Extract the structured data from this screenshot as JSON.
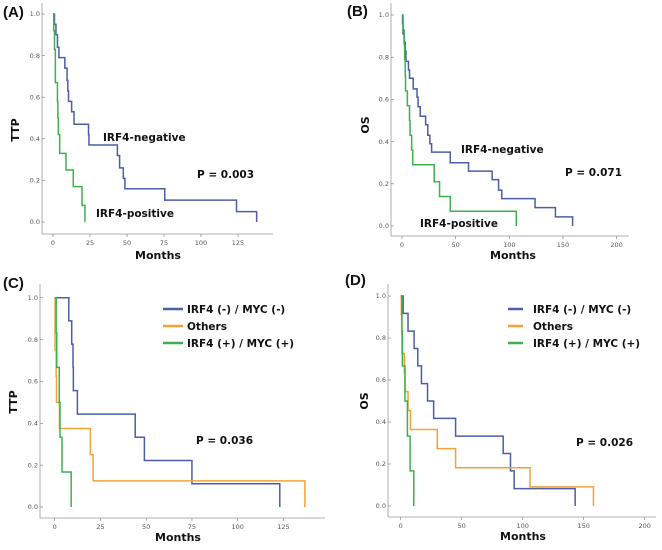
{
  "chart_data": [
    {
      "type": "line",
      "panel_label": "(A)",
      "xlabel": "Months",
      "ylabel": "TTP",
      "xlim": [
        0,
        137.6
      ],
      "ylim": [
        0,
        1
      ],
      "xticks": [
        0,
        25,
        50,
        75,
        100,
        125
      ],
      "yticks": [
        "0.0",
        "0.2",
        "0.4",
        "0.6",
        "0.8",
        "1.0"
      ],
      "grid": false,
      "step": true,
      "p_value": "P = 0.003",
      "series": [
        {
          "name": "IRF4-negative",
          "color": "#4b5ea6",
          "points": [
            [
              0,
              1
            ],
            [
              1,
              0.95
            ],
            [
              2,
              0.9
            ],
            [
              3,
              0.84
            ],
            [
              4,
              0.79
            ],
            [
              8,
              0.74
            ],
            [
              9.5,
              0.68
            ],
            [
              10,
              0.63
            ],
            [
              10.5,
              0.58
            ],
            [
              12.6,
              0.53
            ],
            [
              14.2,
              0.47
            ],
            [
              24,
              0.42
            ],
            [
              24.3,
              0.37
            ],
            [
              43.5,
              0.32
            ],
            [
              45,
              0.26
            ],
            [
              47.5,
              0.21
            ],
            [
              48.6,
              0.16
            ],
            [
              75.5,
              0.105
            ],
            [
              124,
              0.05
            ],
            [
              137.6,
              0
            ]
          ]
        },
        {
          "name": "IRF4-positive",
          "color": "#3bb24c",
          "points": [
            [
              0,
              1
            ],
            [
              0.5,
              0.92
            ],
            [
              1,
              0.83
            ],
            [
              1.6,
              0.67
            ],
            [
              3,
              0.58
            ],
            [
              3.3,
              0.5
            ],
            [
              3.6,
              0.42
            ],
            [
              4.5,
              0.33
            ],
            [
              8.8,
              0.25
            ],
            [
              13.7,
              0.17
            ],
            [
              19.6,
              0.08
            ],
            [
              21.6,
              0
            ]
          ]
        }
      ]
    },
    {
      "type": "line",
      "panel_label": "(B)",
      "xlabel": "Months",
      "ylabel": "OS",
      "xlim": [
        0,
        200
      ],
      "ylim": [
        0,
        1
      ],
      "xticks": [
        0,
        50,
        100,
        150,
        200
      ],
      "yticks": [
        "0.0",
        "0.2",
        "0.4",
        "0.6",
        "0.8",
        "1.0"
      ],
      "grid": false,
      "step": true,
      "p_value": "P = 0.071",
      "series": [
        {
          "name": "IRF4-negative",
          "color": "#4b5ea6",
          "points": [
            [
              0,
              1
            ],
            [
              0.5,
              0.96
            ],
            [
              1,
              0.91
            ],
            [
              2,
              0.87
            ],
            [
              3,
              0.83
            ],
            [
              3.7,
              0.78
            ],
            [
              6,
              0.74
            ],
            [
              7,
              0.7
            ],
            [
              10.5,
              0.65
            ],
            [
              14,
              0.61
            ],
            [
              15,
              0.565
            ],
            [
              17,
              0.52
            ],
            [
              22,
              0.48
            ],
            [
              24,
              0.43
            ],
            [
              26,
              0.39
            ],
            [
              27.6,
              0.35
            ],
            [
              45,
              0.3
            ],
            [
              62,
              0.26
            ],
            [
              84,
              0.22
            ],
            [
              90,
              0.17
            ],
            [
              93,
              0.13
            ],
            [
              124,
              0.087
            ],
            [
              143,
              0.043
            ],
            [
              159,
              0
            ]
          ]
        },
        {
          "name": "IRF4-positive",
          "color": "#3bb24c",
          "points": [
            [
              0,
              1
            ],
            [
              1,
              0.93
            ],
            [
              2,
              0.86
            ],
            [
              2.5,
              0.79
            ],
            [
              3,
              0.71
            ],
            [
              3.3,
              0.64
            ],
            [
              5,
              0.57
            ],
            [
              7,
              0.5
            ],
            [
              7.5,
              0.43
            ],
            [
              9,
              0.36
            ],
            [
              10,
              0.29
            ],
            [
              30,
              0.21
            ],
            [
              35,
              0.14
            ],
            [
              45,
              0.07
            ],
            [
              106.5,
              0
            ]
          ]
        }
      ]
    },
    {
      "type": "line",
      "panel_label": "(C)",
      "xlabel": "Months",
      "ylabel": "TTP",
      "xlim": [
        0,
        137
      ],
      "ylim": [
        0,
        1
      ],
      "xticks": [
        0,
        25,
        50,
        75,
        100,
        125
      ],
      "yticks": [
        "0.0",
        "0.2",
        "0.4",
        "0.6",
        "0.8",
        "1.0"
      ],
      "grid": false,
      "step": true,
      "legend_position": "top-right",
      "p_value": "P = 0.036",
      "series": [
        {
          "name": "IRF4 (-) / MYC (-)",
          "color": "#4b5ea6",
          "points": [
            [
              0,
              1
            ],
            [
              7.7,
              0.889
            ],
            [
              9.3,
              0.778
            ],
            [
              10,
              0.667
            ],
            [
              10.2,
              0.556
            ],
            [
              12.4,
              0.444
            ],
            [
              44,
              0.333
            ],
            [
              49,
              0.222
            ],
            [
              75,
              0.111
            ],
            [
              123,
              0
            ]
          ]
        },
        {
          "name": "Others",
          "color": "#f2a23a",
          "points": [
            [
              0,
              1
            ],
            [
              0.2,
              0.75
            ],
            [
              0.8,
              0.625
            ],
            [
              1,
              0.5
            ],
            [
              2.6,
              0.375
            ],
            [
              19.5,
              0.25
            ],
            [
              21,
              0.125
            ],
            [
              136.7,
              0
            ]
          ]
        },
        {
          "name": "IRF4 (+) / MYC (+)",
          "color": "#3bb24c",
          "points": [
            [
              0,
              1
            ],
            [
              0.8,
              0.833
            ],
            [
              1.1,
              0.667
            ],
            [
              2.5,
              0.5
            ],
            [
              2.9,
              0.333
            ],
            [
              4,
              0.167
            ],
            [
              9,
              0
            ]
          ]
        }
      ]
    },
    {
      "type": "line",
      "panel_label": "(D)",
      "xlabel": "Months",
      "ylabel": "OS",
      "xlim": [
        0,
        200
      ],
      "ylim": [
        0,
        1
      ],
      "xticks": [
        0,
        50,
        100,
        150,
        200
      ],
      "yticks": [
        "0.0",
        "0.2",
        "0.4",
        "0.6",
        "0.8",
        "1.0"
      ],
      "grid": false,
      "step": true,
      "legend_position": "top-right",
      "p_value": "P = 0.026",
      "series": [
        {
          "name": "IRF4 (-) / MYC (-)",
          "color": "#4b5ea6",
          "points": [
            [
              0,
              1
            ],
            [
              2,
              0.917
            ],
            [
              6,
              0.833
            ],
            [
              11,
              0.75
            ],
            [
              14,
              0.667
            ],
            [
              17,
              0.583
            ],
            [
              22,
              0.5
            ],
            [
              27,
              0.417
            ],
            [
              45,
              0.333
            ],
            [
              84,
              0.25
            ],
            [
              90,
              0.167
            ],
            [
              93,
              0.083
            ],
            [
              143,
              0
            ]
          ]
        },
        {
          "name": "Others",
          "color": "#f2a23a",
          "points": [
            [
              0,
              1
            ],
            [
              0.5,
              0.909
            ],
            [
              0.8,
              0.818
            ],
            [
              1,
              0.727
            ],
            [
              3,
              0.636
            ],
            [
              3.5,
              0.545
            ],
            [
              6,
              0.455
            ],
            [
              8,
              0.364
            ],
            [
              30,
              0.273
            ],
            [
              45,
              0.182
            ],
            [
              106,
              0.091
            ],
            [
              158,
              0
            ]
          ]
        },
        {
          "name": "IRF4 (+) / MYC (+)",
          "color": "#3bb24c",
          "points": [
            [
              0,
              1
            ],
            [
              1,
              0.833
            ],
            [
              1.4,
              0.667
            ],
            [
              3.5,
              0.5
            ],
            [
              5.5,
              0.333
            ],
            [
              7.7,
              0.167
            ],
            [
              10.7,
              0
            ]
          ]
        }
      ]
    }
  ]
}
